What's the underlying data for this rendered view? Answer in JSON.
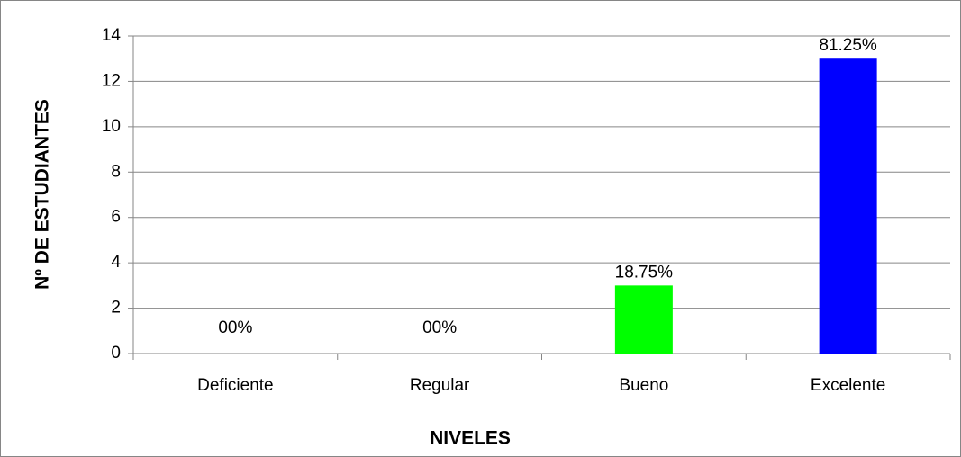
{
  "chart_data": {
    "type": "bar",
    "categories": [
      "Deficiente",
      "Regular",
      "Bueno",
      "Excelente"
    ],
    "values": [
      0,
      0,
      3,
      13
    ],
    "data_labels": [
      "00%",
      "00%",
      "18.75%",
      "81.25%"
    ],
    "colors": [
      "#00ff00",
      "#00ff00",
      "#00ff00",
      "#0000ff"
    ],
    "ylim": [
      0,
      14
    ],
    "yticks": [
      0,
      2,
      4,
      6,
      8,
      10,
      12,
      14
    ],
    "grid": true,
    "xlabel": "NIVELES",
    "ylabel": "Nº DE ESTUDIANTES"
  }
}
